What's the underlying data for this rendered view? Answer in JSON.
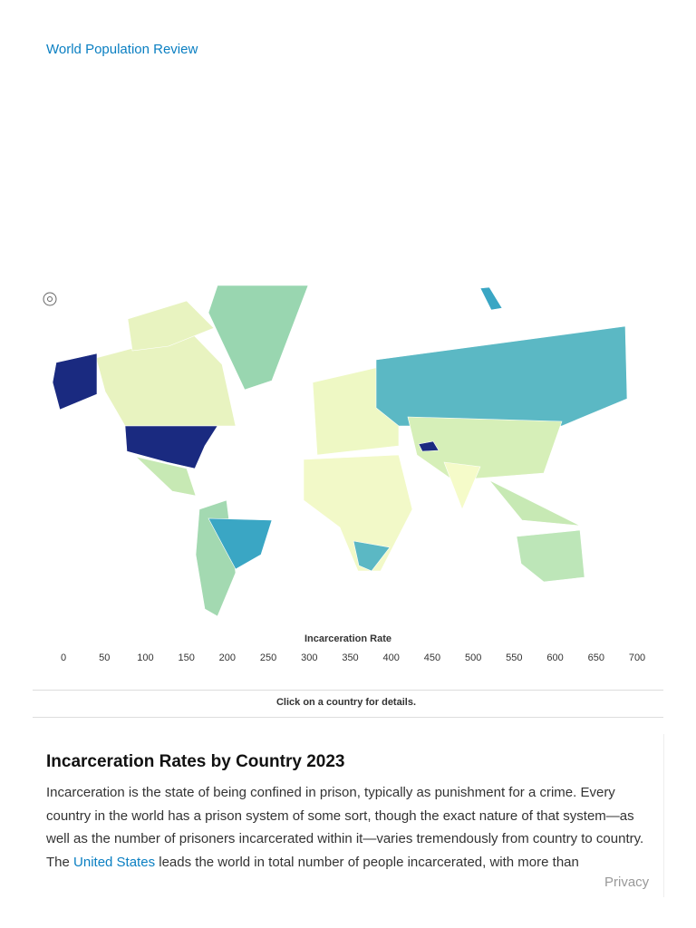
{
  "header": {
    "site_link": "World Population Review"
  },
  "map": {
    "legend_title": "Incarceration Rate",
    "legend_ticks": [
      0,
      50,
      100,
      150,
      200,
      250,
      300,
      350,
      400,
      450,
      500,
      550,
      600,
      650,
      700
    ],
    "hint": "Click on a country for details."
  },
  "article": {
    "heading": "Incarceration Rates by Country 2023",
    "paragraph": {
      "before": "Incarceration is the state of being confined in prison, typically as punishment for a crime. Every country in the world has a prison system of some sort, though the exact nature of that system—as well as the number of prisoners incarcerated within it—varies tremendously from country to country. The ",
      "link": "United States",
      "after": " leads the world in total number of people incarcerated, with more than"
    }
  },
  "footer": {
    "privacy": "Privacy"
  }
}
